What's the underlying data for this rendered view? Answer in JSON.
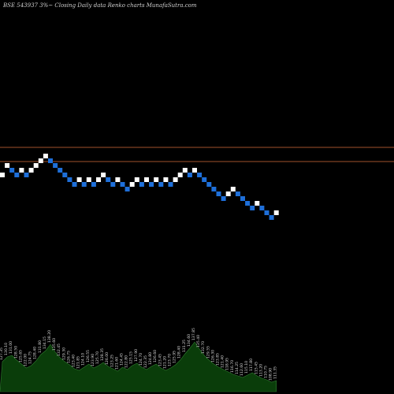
{
  "title": "BSE 543937 3%~ Closing Daily data  Renko  charts MunafaSutra.com",
  "chart_data": {
    "type": "renko",
    "title": "BSE 543937 3%~ Closing Daily data  Renko  charts MunafaSutra.com",
    "xlabel": "",
    "ylabel": "",
    "grid": false,
    "legend": "none",
    "colors": {
      "up": "#ffffff",
      "down": "#1e6fd9",
      "hline": "#a0522d",
      "volume": "#0a3d0a",
      "background": "#000000"
    },
    "reference_lines": [
      0.0,
      -3.0
    ],
    "bricks": [
      {
        "level": -3,
        "dir": "up"
      },
      {
        "level": -1,
        "dir": "up"
      },
      {
        "level": -2,
        "dir": "down"
      },
      {
        "level": -3,
        "dir": "down"
      },
      {
        "level": -2,
        "dir": "up"
      },
      {
        "level": -3,
        "dir": "down"
      },
      {
        "level": -2,
        "dir": "up"
      },
      {
        "level": -1,
        "dir": "up"
      },
      {
        "level": 0,
        "dir": "up"
      },
      {
        "level": 1,
        "dir": "up"
      },
      {
        "level": 0,
        "dir": "down"
      },
      {
        "level": -1,
        "dir": "down"
      },
      {
        "level": -2,
        "dir": "down"
      },
      {
        "level": -3,
        "dir": "down"
      },
      {
        "level": -4,
        "dir": "down"
      },
      {
        "level": -5,
        "dir": "down"
      },
      {
        "level": -4,
        "dir": "up"
      },
      {
        "level": -5,
        "dir": "down"
      },
      {
        "level": -4,
        "dir": "up"
      },
      {
        "level": -5,
        "dir": "down"
      },
      {
        "level": -4,
        "dir": "up"
      },
      {
        "level": -3,
        "dir": "up"
      },
      {
        "level": -4,
        "dir": "down"
      },
      {
        "level": -5,
        "dir": "down"
      },
      {
        "level": -4,
        "dir": "up"
      },
      {
        "level": -5,
        "dir": "down"
      },
      {
        "level": -6,
        "dir": "down"
      },
      {
        "level": -5,
        "dir": "up"
      },
      {
        "level": -4,
        "dir": "up"
      },
      {
        "level": -5,
        "dir": "down"
      },
      {
        "level": -4,
        "dir": "up"
      },
      {
        "level": -5,
        "dir": "down"
      },
      {
        "level": -4,
        "dir": "up"
      },
      {
        "level": -5,
        "dir": "down"
      },
      {
        "level": -4,
        "dir": "up"
      },
      {
        "level": -5,
        "dir": "down"
      },
      {
        "level": -4,
        "dir": "up"
      },
      {
        "level": -3,
        "dir": "up"
      },
      {
        "level": -2,
        "dir": "up"
      },
      {
        "level": -3,
        "dir": "down"
      },
      {
        "level": -2,
        "dir": "up"
      },
      {
        "level": -3,
        "dir": "down"
      },
      {
        "level": -4,
        "dir": "down"
      },
      {
        "level": -5,
        "dir": "down"
      },
      {
        "level": -6,
        "dir": "down"
      },
      {
        "level": -7,
        "dir": "down"
      },
      {
        "level": -8,
        "dir": "down"
      },
      {
        "level": -7,
        "dir": "up"
      },
      {
        "level": -6,
        "dir": "up"
      },
      {
        "level": -7,
        "dir": "down"
      },
      {
        "level": -8,
        "dir": "down"
      },
      {
        "level": -9,
        "dir": "down"
      },
      {
        "level": -10,
        "dir": "down"
      },
      {
        "level": -9,
        "dir": "up"
      },
      {
        "level": -10,
        "dir": "down"
      },
      {
        "level": -11,
        "dir": "down"
      },
      {
        "level": -12,
        "dir": "down"
      },
      {
        "level": -11,
        "dir": "up"
      }
    ],
    "volume_labels": [
      "127.35",
      "130.10",
      "131.00",
      "128.50",
      "125.65",
      "122.00",
      "124.75",
      "128.40",
      "131.80",
      "134.15",
      "138.20",
      "135.60",
      "132.45",
      "129.30",
      "126.75",
      "123.40",
      "121.85",
      "124.10",
      "126.55",
      "123.90",
      "125.70",
      "128.35",
      "126.00",
      "123.25",
      "121.60",
      "124.45",
      "122.80",
      "125.15",
      "127.90",
      "124.70",
      "122.35",
      "124.80",
      "126.60",
      "123.45",
      "121.20",
      "123.70",
      "125.95",
      "128.40",
      "131.25",
      "134.60",
      "137.85",
      "135.40",
      "132.70",
      "129.55",
      "126.30",
      "123.85",
      "121.40",
      "118.95",
      "116.70",
      "114.25",
      "112.60",
      "115.10",
      "117.80",
      "115.45",
      "113.20",
      "110.75",
      "108.90",
      "111.35"
    ],
    "volume_values": [
      38,
      44,
      46,
      40,
      35,
      30,
      33,
      39,
      47,
      52,
      60,
      50,
      43,
      38,
      34,
      29,
      27,
      31,
      35,
      30,
      33,
      37,
      32,
      29,
      26,
      31,
      28,
      33,
      36,
      31,
      28,
      32,
      35,
      30,
      27,
      30,
      34,
      40,
      48,
      55,
      63,
      54,
      46,
      40,
      35,
      31,
      28,
      25,
      22,
      20,
      18,
      21,
      24,
      20,
      17,
      15,
      12,
      14
    ]
  }
}
